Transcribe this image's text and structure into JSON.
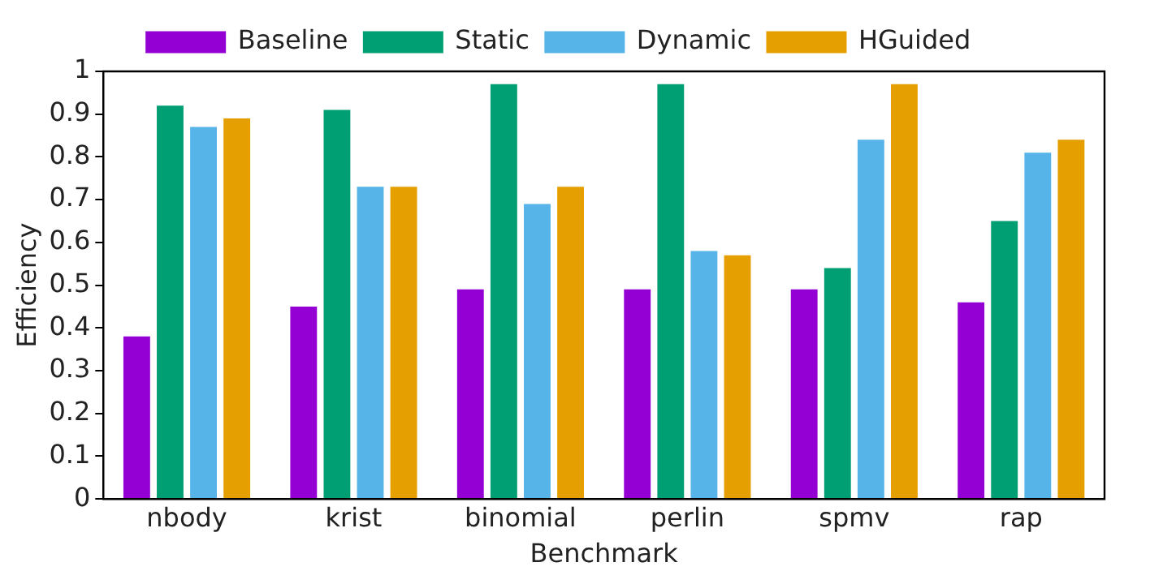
{
  "chart_data": {
    "type": "bar",
    "xlabel": "Benchmark",
    "ylabel": "Efficiency",
    "categories": [
      "nbody",
      "krist",
      "binomial",
      "perlin",
      "spmv",
      "rap"
    ],
    "series": [
      {
        "name": "Baseline",
        "color": "#9400d3",
        "values": [
          0.38,
          0.45,
          0.49,
          0.49,
          0.49,
          0.46
        ]
      },
      {
        "name": "Static",
        "color": "#009e73",
        "values": [
          0.92,
          0.91,
          0.97,
          0.97,
          0.54,
          0.65
        ]
      },
      {
        "name": "Dynamic",
        "color": "#56b4e9",
        "values": [
          0.87,
          0.73,
          0.69,
          0.58,
          0.84,
          0.81
        ]
      },
      {
        "name": "HGuided",
        "color": "#e69f00",
        "values": [
          0.89,
          0.73,
          0.73,
          0.57,
          0.97,
          0.84
        ]
      }
    ],
    "ylim": [
      0,
      1
    ],
    "yticks": [
      0,
      0.1,
      0.2,
      0.3,
      0.4,
      0.5,
      0.6,
      0.7,
      0.8,
      0.9,
      1
    ],
    "grid": false,
    "legend": "top"
  }
}
